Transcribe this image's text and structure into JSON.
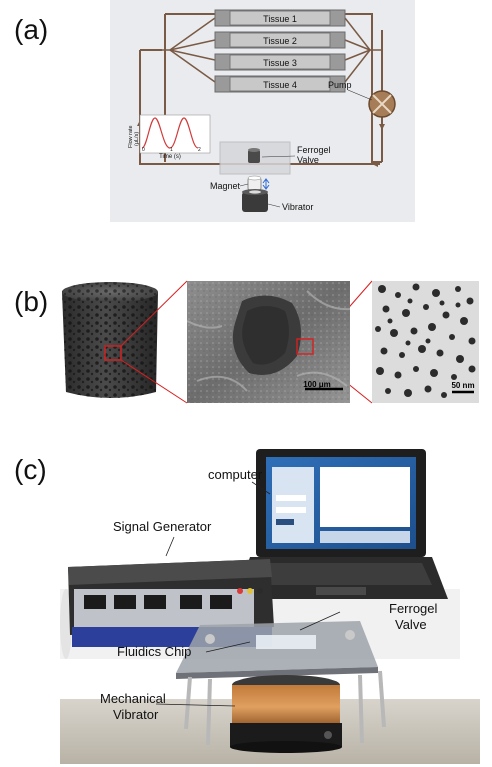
{
  "panels": {
    "a": "(a)",
    "b": "(b)",
    "c": "(c)"
  },
  "panel_a": {
    "tissues": [
      "Tissue 1",
      "Tissue 2",
      "Tissue 3",
      "Tissue 4"
    ],
    "pump_label": "Pump",
    "valve_label_line1": "Ferrogel",
    "valve_label_line2": "Valve",
    "magnet_label": "Magnet",
    "vibrator_label": "Vibrator",
    "inset": {
      "ylabel_line1": "Flow rate",
      "ylabel_line2": "(μL/s)",
      "xlabel": "Time (s)",
      "xticks": [
        "0",
        "1",
        "2"
      ]
    }
  },
  "panel_b": {
    "scale_bar_middle": "100 μm",
    "scale_bar_right": "50 nm"
  },
  "panel_c": {
    "computer_label": "computer",
    "signal_generator_label": "Signal Generator",
    "ferrogel_label_line1": "Ferrogel",
    "ferrogel_label_line2": "Valve",
    "fluidics_label": "Fluidics Chip",
    "vibrator_label_line1": "Mechanical",
    "vibrator_label_line2": "Vibrator"
  },
  "colors": {
    "tube": "#7a5a44",
    "diagram_bg": "#e9eaee",
    "tissue_box": "#8a8a8a",
    "inset_curve": "#d23a3a",
    "highlight": "#d81f1f",
    "arrow": "#2a6ad8"
  }
}
